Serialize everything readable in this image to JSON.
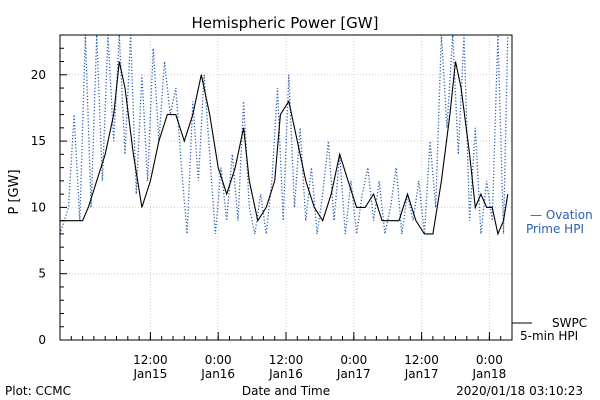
{
  "chart_data": {
    "type": "line",
    "title": "Hemispheric Power [GW]",
    "xlabel": "Date and Time",
    "ylabel": "P [GW]",
    "ylim": [
      0,
      23
    ],
    "y_ticks": [
      0,
      5,
      10,
      15,
      20
    ],
    "x_range": [
      "2020-01-14T20:00",
      "2020-01-18T04:00"
    ],
    "x_ticks": [
      {
        "time": "2020-01-15T12:00",
        "label": "12:00",
        "sublabel": "Jan15"
      },
      {
        "time": "2020-01-16T00:00",
        "label": "0:00",
        "sublabel": "Jan16"
      },
      {
        "time": "2020-01-16T12:00",
        "label": "12:00",
        "sublabel": "Jan16"
      },
      {
        "time": "2020-01-17T00:00",
        "label": "0:00",
        "sublabel": "Jan17"
      },
      {
        "time": "2020-01-17T12:00",
        "label": "12:00",
        "sublabel": "Jan17"
      },
      {
        "time": "2020-01-18T00:00",
        "label": "0:00",
        "sublabel": "Jan18"
      }
    ],
    "grid": true,
    "series": [
      {
        "name": "SWPC 5-min HPI",
        "color": "#000000",
        "style": "solid",
        "points": [
          [
            "2020-01-14T20:00",
            9
          ],
          [
            "2020-01-14T22:00",
            9
          ],
          [
            "2020-01-15T00:00",
            9
          ],
          [
            "2020-01-15T01:00",
            10
          ],
          [
            "2020-01-15T02:30",
            12
          ],
          [
            "2020-01-15T04:00",
            14
          ],
          [
            "2020-01-15T05:30",
            17
          ],
          [
            "2020-01-15T06:30",
            21
          ],
          [
            "2020-01-15T07:30",
            19
          ],
          [
            "2020-01-15T09:00",
            14
          ],
          [
            "2020-01-15T10:30",
            10
          ],
          [
            "2020-01-15T12:00",
            12
          ],
          [
            "2020-01-15T13:30",
            15
          ],
          [
            "2020-01-15T15:00",
            17
          ],
          [
            "2020-01-15T16:30",
            17
          ],
          [
            "2020-01-15T18:00",
            15
          ],
          [
            "2020-01-15T19:30",
            17
          ],
          [
            "2020-01-15T21:00",
            20
          ],
          [
            "2020-01-15T22:30",
            17
          ],
          [
            "2020-01-16T00:00",
            13
          ],
          [
            "2020-01-16T01:30",
            11
          ],
          [
            "2020-01-16T03:00",
            13
          ],
          [
            "2020-01-16T04:30",
            16
          ],
          [
            "2020-01-16T05:30",
            12
          ],
          [
            "2020-01-16T07:00",
            9
          ],
          [
            "2020-01-16T08:30",
            10
          ],
          [
            "2020-01-16T10:00",
            12
          ],
          [
            "2020-01-16T11:00",
            17
          ],
          [
            "2020-01-16T12:30",
            18
          ],
          [
            "2020-01-16T14:00",
            15
          ],
          [
            "2020-01-16T15:30",
            12
          ],
          [
            "2020-01-16T17:00",
            10
          ],
          [
            "2020-01-16T18:30",
            9
          ],
          [
            "2020-01-16T20:00",
            11
          ],
          [
            "2020-01-16T21:30",
            14
          ],
          [
            "2020-01-16T23:00",
            12
          ],
          [
            "2020-01-17T00:30",
            10
          ],
          [
            "2020-01-17T02:00",
            10
          ],
          [
            "2020-01-17T03:30",
            11
          ],
          [
            "2020-01-17T05:00",
            9
          ],
          [
            "2020-01-17T06:30",
            9
          ],
          [
            "2020-01-17T08:00",
            9
          ],
          [
            "2020-01-17T09:30",
            11
          ],
          [
            "2020-01-17T11:00",
            9
          ],
          [
            "2020-01-17T12:30",
            8
          ],
          [
            "2020-01-17T14:00",
            8
          ],
          [
            "2020-01-17T15:30",
            12
          ],
          [
            "2020-01-17T17:00",
            17
          ],
          [
            "2020-01-17T18:00",
            21
          ],
          [
            "2020-01-17T19:00",
            19
          ],
          [
            "2020-01-17T20:30",
            14
          ],
          [
            "2020-01-17T21:30",
            10
          ],
          [
            "2020-01-17T22:30",
            11
          ],
          [
            "2020-01-17T23:30",
            10
          ],
          [
            "2020-01-18T00:30",
            10
          ],
          [
            "2020-01-18T01:30",
            8
          ],
          [
            "2020-01-18T02:30",
            9
          ],
          [
            "2020-01-18T03:15",
            11
          ]
        ]
      },
      {
        "name": "Ovation Prime HPI",
        "color": "#2a5fb0",
        "style": "dotted",
        "points": [
          [
            "2020-01-14T20:00",
            8
          ],
          [
            "2020-01-14T21:30",
            10
          ],
          [
            "2020-01-14T22:30",
            17
          ],
          [
            "2020-01-14T23:30",
            9
          ],
          [
            "2020-01-15T00:30",
            23
          ],
          [
            "2020-01-15T01:30",
            10
          ],
          [
            "2020-01-15T02:30",
            23
          ],
          [
            "2020-01-15T03:30",
            12
          ],
          [
            "2020-01-15T04:30",
            23
          ],
          [
            "2020-01-15T05:30",
            15
          ],
          [
            "2020-01-15T06:30",
            23
          ],
          [
            "2020-01-15T07:30",
            14
          ],
          [
            "2020-01-15T08:30",
            23
          ],
          [
            "2020-01-15T09:30",
            11
          ],
          [
            "2020-01-15T10:30",
            20
          ],
          [
            "2020-01-15T11:30",
            12
          ],
          [
            "2020-01-15T12:30",
            22
          ],
          [
            "2020-01-15T13:30",
            15
          ],
          [
            "2020-01-15T14:30",
            21
          ],
          [
            "2020-01-15T15:30",
            17
          ],
          [
            "2020-01-15T16:30",
            19
          ],
          [
            "2020-01-15T17:30",
            13
          ],
          [
            "2020-01-15T18:30",
            8
          ],
          [
            "2020-01-15T19:30",
            18
          ],
          [
            "2020-01-15T20:30",
            12
          ],
          [
            "2020-01-15T21:30",
            20
          ],
          [
            "2020-01-15T22:30",
            14
          ],
          [
            "2020-01-15T23:30",
            8
          ],
          [
            "2020-01-16T00:30",
            13
          ],
          [
            "2020-01-16T01:30",
            9
          ],
          [
            "2020-01-16T02:30",
            14
          ],
          [
            "2020-01-16T03:30",
            9
          ],
          [
            "2020-01-16T04:30",
            18
          ],
          [
            "2020-01-16T05:30",
            10
          ],
          [
            "2020-01-16T06:30",
            8
          ],
          [
            "2020-01-16T07:30",
            11
          ],
          [
            "2020-01-16T08:30",
            8
          ],
          [
            "2020-01-16T09:30",
            12
          ],
          [
            "2020-01-16T10:30",
            19
          ],
          [
            "2020-01-16T11:30",
            9
          ],
          [
            "2020-01-16T12:30",
            20
          ],
          [
            "2020-01-16T13:30",
            10
          ],
          [
            "2020-01-16T14:30",
            16
          ],
          [
            "2020-01-16T15:30",
            9
          ],
          [
            "2020-01-16T16:30",
            13
          ],
          [
            "2020-01-16T17:30",
            8
          ],
          [
            "2020-01-16T18:30",
            11
          ],
          [
            "2020-01-16T19:30",
            15
          ],
          [
            "2020-01-16T20:30",
            9
          ],
          [
            "2020-01-16T21:30",
            14
          ],
          [
            "2020-01-16T22:30",
            8
          ],
          [
            "2020-01-16T23:30",
            12
          ],
          [
            "2020-01-17T00:30",
            8
          ],
          [
            "2020-01-17T01:30",
            11
          ],
          [
            "2020-01-17T02:30",
            13
          ],
          [
            "2020-01-17T03:30",
            9
          ],
          [
            "2020-01-17T04:30",
            12
          ],
          [
            "2020-01-17T05:30",
            8
          ],
          [
            "2020-01-17T06:30",
            10
          ],
          [
            "2020-01-17T07:30",
            13
          ],
          [
            "2020-01-17T08:30",
            8
          ],
          [
            "2020-01-17T09:30",
            11
          ],
          [
            "2020-01-17T10:30",
            9
          ],
          [
            "2020-01-17T11:30",
            12
          ],
          [
            "2020-01-17T12:30",
            8
          ],
          [
            "2020-01-17T13:30",
            15
          ],
          [
            "2020-01-17T14:30",
            10
          ],
          [
            "2020-01-17T15:30",
            23
          ],
          [
            "2020-01-17T16:30",
            16
          ],
          [
            "2020-01-17T17:30",
            23
          ],
          [
            "2020-01-17T18:30",
            14
          ],
          [
            "2020-01-17T19:30",
            23
          ],
          [
            "2020-01-17T20:30",
            9
          ],
          [
            "2020-01-17T21:30",
            16
          ],
          [
            "2020-01-17T22:30",
            8
          ],
          [
            "2020-01-17T23:30",
            12
          ],
          [
            "2020-01-18T00:30",
            9
          ],
          [
            "2020-01-18T01:30",
            23
          ],
          [
            "2020-01-18T02:30",
            8
          ],
          [
            "2020-01-18T03:15",
            23
          ]
        ]
      }
    ]
  },
  "legend": {
    "ovation_line1": "— Ovation",
    "ovation_line2": "Prime HPI",
    "swpc_line1": "SWPC",
    "swpc_line2": "5-min HPI"
  },
  "footer": {
    "plot_credit": "Plot: CCMC",
    "xaxis_title": "Date and Time",
    "timestamp": "2020/01/18 03:10:23"
  },
  "colors": {
    "ovation": "#2a5fb0",
    "swpc": "#000000",
    "grid": "#d0d0d0"
  }
}
